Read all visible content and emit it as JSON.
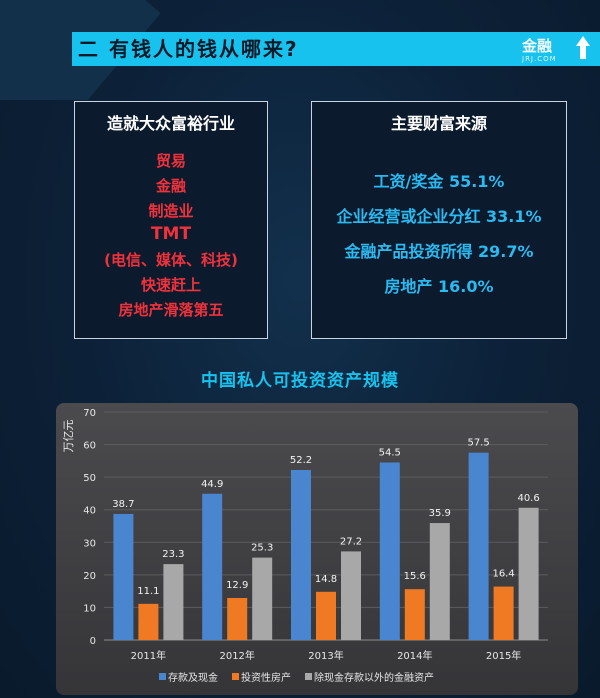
{
  "header": {
    "title": "二 有钱人的钱从哪来?",
    "logo_text": "金融",
    "logo_sub": "JRJ.COM"
  },
  "industries_box": {
    "title": "造就大众富裕行业",
    "items": [
      "贸易",
      "金融",
      "制造业",
      "TMT",
      "(电信、媒体、科技)",
      "快速赶上",
      "房地产滑落第五"
    ]
  },
  "sources_box": {
    "title": "主要财富来源",
    "items": [
      "工资/奖金  55.1%",
      "企业经营或企业分红 33.1%",
      "金融产品投资所得 29.7%",
      "房地产  16.0%"
    ]
  },
  "chart_data": {
    "type": "bar",
    "title": "中国私人可投资资产规模",
    "ylabel": "万亿元",
    "xlabel": "",
    "ylim": [
      0,
      70
    ],
    "yticks": [
      0,
      10,
      20,
      30,
      40,
      50,
      60,
      70
    ],
    "grid": true,
    "legend": "bottom",
    "categories": [
      "2011年",
      "2012年",
      "2013年",
      "2014年",
      "2015年"
    ],
    "series": [
      {
        "name": "存款及现金",
        "color": "#4a86cf",
        "values": [
          38.7,
          44.9,
          52.2,
          54.5,
          57.5
        ]
      },
      {
        "name": "投资性房产",
        "color": "#f07a24",
        "values": [
          11.1,
          12.9,
          14.8,
          15.6,
          16.4
        ]
      },
      {
        "name": "除现金存款以外的金融资产",
        "color": "#a8a8a8",
        "values": [
          23.3,
          25.3,
          27.2,
          35.9,
          40.6
        ]
      }
    ]
  }
}
